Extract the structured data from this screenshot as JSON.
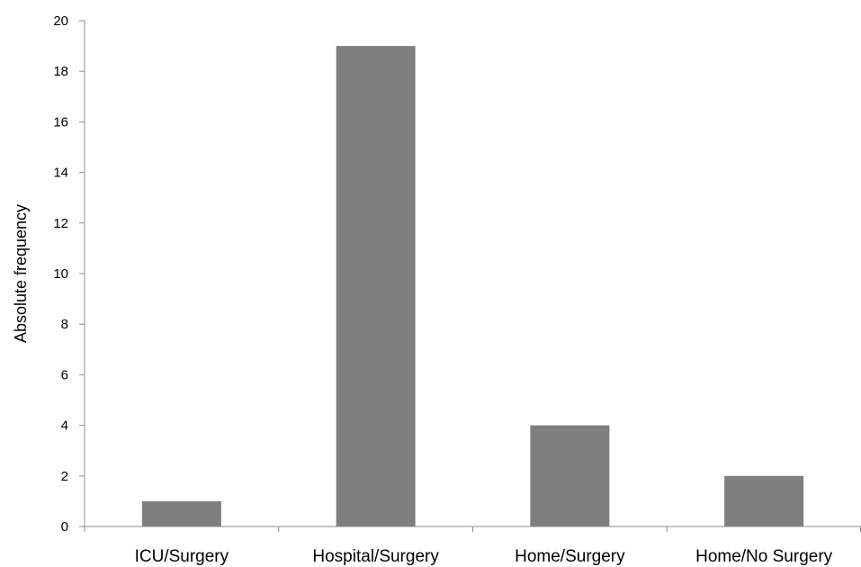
{
  "chart_data": {
    "type": "bar",
    "title": "",
    "xlabel": "",
    "ylabel": "Absolute frequency",
    "categories": [
      "ICU/Surgery",
      "Hospital/Surgery",
      "Home/Surgery",
      "Home/No Surgery"
    ],
    "values": [
      1,
      19,
      4,
      2
    ],
    "ylim": [
      0,
      20
    ],
    "yticks": [
      0,
      2,
      4,
      6,
      8,
      10,
      12,
      14,
      16,
      18,
      20
    ],
    "grid": false,
    "legend": "none",
    "bar_color": "#7f7f7f",
    "axis_color": "#8c8c8c"
  }
}
